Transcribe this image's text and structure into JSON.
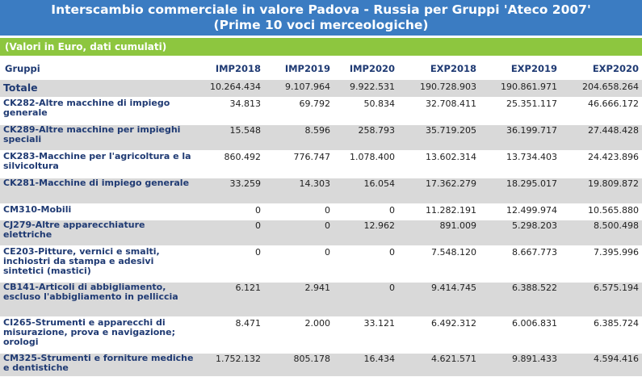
{
  "title": {
    "line1": "Interscambio commerciale in valore Padova - Russia per Gruppi 'Ateco 2007'",
    "line2": "(Prime 10 voci merceologiche)"
  },
  "subtitle": "(Valori in Euro, dati cumulati)",
  "headers": [
    "Gruppi",
    "IMP2018",
    "IMP2019",
    "IMP2020",
    "EXP2018",
    "EXP2019",
    "EXP2020"
  ],
  "total": {
    "label": "Totale",
    "values": [
      "10.264.434",
      "9.107.964",
      "9.922.531",
      "190.728.903",
      "190.861.971",
      "204.658.264"
    ]
  },
  "rows": [
    {
      "label": "CK282-Altre macchine di impiego generale",
      "values": [
        "34.813",
        "69.792",
        "50.834",
        "32.708.411",
        "25.351.117",
        "46.666.172"
      ]
    },
    {
      "label": "CK289-Altre macchine per impieghi speciali",
      "values": [
        "15.548",
        "8.596",
        "258.793",
        "35.719.205",
        "36.199.717",
        "27.448.428"
      ]
    },
    {
      "label": "CK283-Macchine per l'agricoltura e la silvicoltura",
      "values": [
        "860.492",
        "776.747",
        "1.078.400",
        "13.602.314",
        "13.734.403",
        "24.423.896"
      ]
    },
    {
      "label": "CK281-Macchine di impiego generale",
      "values": [
        "33.259",
        "14.303",
        "16.054",
        "17.362.279",
        "18.295.017",
        "19.809.872"
      ]
    },
    {
      "label": "CM310-Mobili",
      "values": [
        "0",
        "0",
        "0",
        "11.282.191",
        "12.499.974",
        "10.565.880"
      ]
    },
    {
      "label": "CJ279-Altre apparecchiature elettriche",
      "values": [
        "0",
        "0",
        "12.962",
        "891.009",
        "5.298.203",
        "8.500.498"
      ]
    },
    {
      "label": "CE203-Pitture, vernici e smalti, inchiostri da stampa e adesivi sintetici (mastici)",
      "values": [
        "0",
        "0",
        "0",
        "7.548.120",
        "8.667.773",
        "7.395.996"
      ]
    },
    {
      "label": "CB141-Articoli di abbigliamento, escluso l'abbigliamento in pelliccia",
      "values": [
        "6.121",
        "2.941",
        "0",
        "9.414.745",
        "6.388.522",
        "6.575.194"
      ]
    },
    {
      "label": "CI265-Strumenti e apparecchi di misurazione, prova e navigazione; orologi",
      "values": [
        "8.471",
        "2.000",
        "33.121",
        "6.492.312",
        "6.006.831",
        "6.385.724"
      ]
    },
    {
      "label": "CM325-Strumenti e forniture mediche e dentistiche",
      "values": [
        "1.752.132",
        "805.178",
        "16.434",
        "4.621.571",
        "9.891.433",
        "4.594.416"
      ]
    }
  ]
}
